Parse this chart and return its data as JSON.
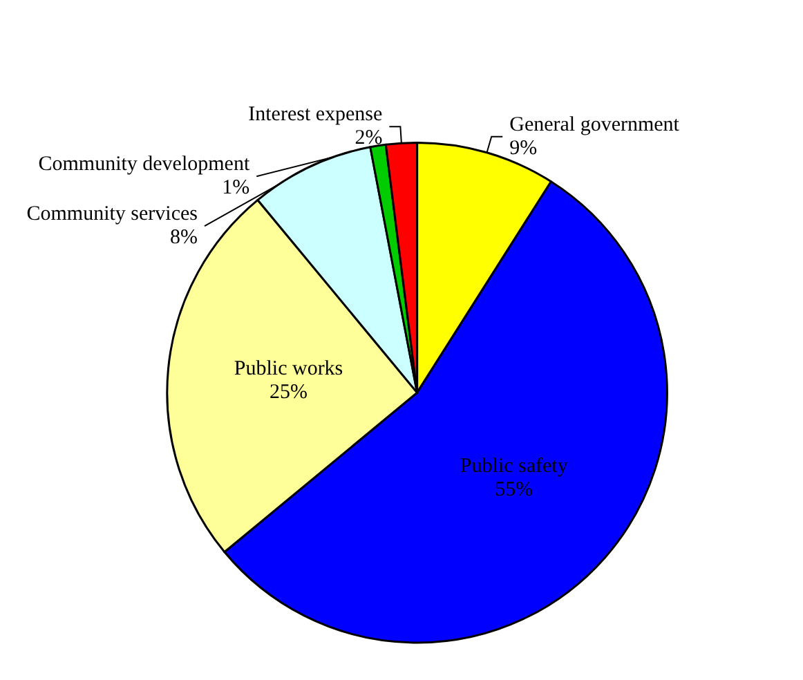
{
  "chart_data": {
    "type": "pie",
    "categories": [
      "General government",
      "Public safety",
      "Public works",
      "Community services",
      "Community development",
      "Interest expense"
    ],
    "values": [
      9,
      55,
      25,
      8,
      1,
      2
    ],
    "colors": [
      "#ffff00",
      "#0000ff",
      "#ffff99",
      "#ccffff",
      "#00cc00",
      "#ff0000"
    ],
    "value_labels": [
      "9%",
      "55%",
      "25%",
      "8%",
      "1%",
      "2%"
    ],
    "legend": false
  }
}
